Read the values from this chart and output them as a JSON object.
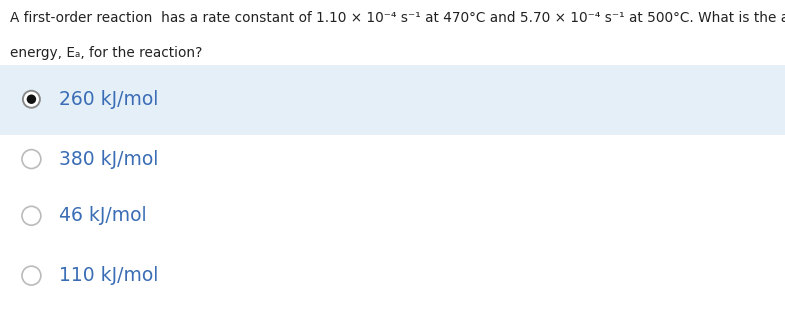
{
  "question_line1": "A first-order reaction  has a rate constant of 1.10 × 10⁻⁴ s⁻¹ at 470°C and 5.70 × 10⁻⁴ s⁻¹ at 500°C. What is the activation",
  "question_line2": "energy, Eₐ, for the reaction?",
  "options": [
    "260 kJ/mol",
    "380 kJ/mol",
    "46 kJ/mol",
    "110 kJ/mol"
  ],
  "correct_index": 0,
  "bg_color": "#ffffff",
  "highlight_color": "#e4eff8",
  "option_text_color": "#3a6db5",
  "question_text_color": "#222222",
  "font_size_question": 9.8,
  "font_size_options": 13.5,
  "fig_width": 7.85,
  "fig_height": 3.15
}
